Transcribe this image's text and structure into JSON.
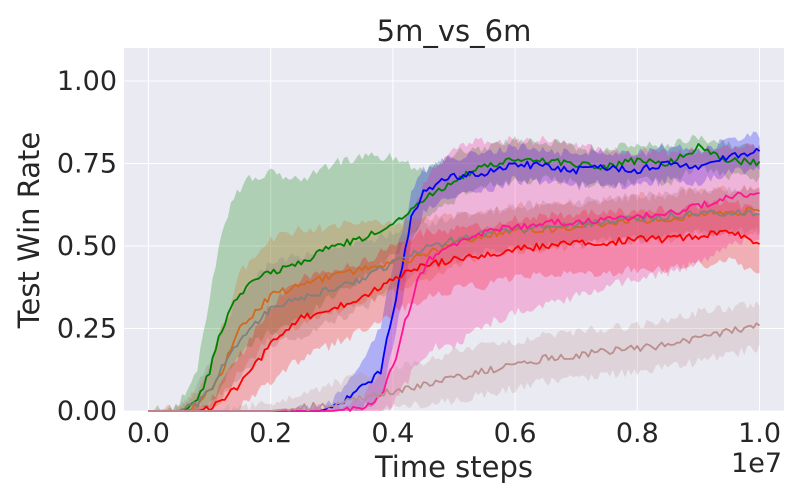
{
  "chart_data": {
    "type": "line",
    "title": "5m_vs_6m",
    "xlabel": "Time steps",
    "ylabel": "Test Win Rate",
    "x_offset_label": "1e7",
    "xlim": [
      -0.04,
      1.04
    ],
    "ylim": [
      0.0,
      1.1
    ],
    "x_ticks": [
      0.0,
      0.2,
      0.4,
      0.6,
      0.8,
      1.0
    ],
    "x_tick_labels": [
      "0.0",
      "0.2",
      "0.4",
      "0.6",
      "0.8",
      "1.0"
    ],
    "y_ticks": [
      0.0,
      0.25,
      0.5,
      0.75,
      1.0
    ],
    "y_tick_labels": [
      "0.00",
      "0.25",
      "0.50",
      "0.75",
      "1.00"
    ],
    "grid": true,
    "background": "#eaeaf2",
    "series": [
      {
        "color": "#008000",
        "x": [
          0.0,
          0.05,
          0.08,
          0.1,
          0.12,
          0.14,
          0.16,
          0.2,
          0.25,
          0.3,
          0.35,
          0.4,
          0.45,
          0.5,
          0.55,
          0.6,
          0.65,
          0.7,
          0.75,
          0.8,
          0.85,
          0.9,
          0.95,
          1.0
        ],
        "y": [
          0.0,
          0.0,
          0.03,
          0.12,
          0.25,
          0.33,
          0.38,
          0.42,
          0.45,
          0.5,
          0.52,
          0.57,
          0.64,
          0.7,
          0.74,
          0.76,
          0.76,
          0.75,
          0.74,
          0.76,
          0.75,
          0.8,
          0.76,
          0.75
        ],
        "lower": [
          0.0,
          0.0,
          0.0,
          0.02,
          0.08,
          0.14,
          0.19,
          0.24,
          0.28,
          0.35,
          0.4,
          0.47,
          0.58,
          0.64,
          0.68,
          0.7,
          0.7,
          0.69,
          0.68,
          0.7,
          0.69,
          0.74,
          0.71,
          0.7
        ],
        "upper": [
          0.0,
          0.02,
          0.12,
          0.35,
          0.55,
          0.65,
          0.7,
          0.72,
          0.7,
          0.75,
          0.77,
          0.77,
          0.73,
          0.78,
          0.8,
          0.82,
          0.82,
          0.8,
          0.79,
          0.81,
          0.8,
          0.83,
          0.81,
          0.8
        ]
      },
      {
        "color": "#0000ff",
        "x": [
          0.0,
          0.1,
          0.2,
          0.28,
          0.3,
          0.33,
          0.36,
          0.38,
          0.4,
          0.42,
          0.43,
          0.45,
          0.5,
          0.55,
          0.6,
          0.65,
          0.7,
          0.75,
          0.8,
          0.85,
          0.9,
          0.95,
          1.0
        ],
        "y": [
          0.0,
          0.0,
          0.0,
          0.0,
          0.01,
          0.04,
          0.09,
          0.12,
          0.3,
          0.48,
          0.58,
          0.67,
          0.71,
          0.72,
          0.75,
          0.74,
          0.73,
          0.74,
          0.73,
          0.75,
          0.74,
          0.77,
          0.79
        ],
        "lower": [
          0.0,
          0.0,
          0.0,
          0.0,
          0.0,
          0.0,
          0.02,
          0.04,
          0.19,
          0.38,
          0.5,
          0.6,
          0.65,
          0.67,
          0.7,
          0.69,
          0.68,
          0.69,
          0.68,
          0.7,
          0.69,
          0.72,
          0.74
        ],
        "upper": [
          0.0,
          0.0,
          0.0,
          0.01,
          0.03,
          0.09,
          0.19,
          0.26,
          0.44,
          0.58,
          0.66,
          0.73,
          0.77,
          0.78,
          0.8,
          0.79,
          0.78,
          0.79,
          0.78,
          0.8,
          0.79,
          0.82,
          0.84
        ]
      },
      {
        "color": "#d2691e",
        "x": [
          0.0,
          0.05,
          0.08,
          0.1,
          0.12,
          0.15,
          0.2,
          0.25,
          0.3,
          0.35,
          0.4,
          0.45,
          0.5,
          0.55,
          0.6,
          0.65,
          0.7,
          0.75,
          0.8,
          0.85,
          0.9,
          0.95,
          1.0
        ],
        "y": [
          0.0,
          0.0,
          0.02,
          0.06,
          0.12,
          0.25,
          0.35,
          0.38,
          0.41,
          0.43,
          0.45,
          0.47,
          0.51,
          0.53,
          0.55,
          0.55,
          0.56,
          0.57,
          0.58,
          0.58,
          0.6,
          0.6,
          0.61
        ],
        "lower": [
          0.0,
          0.0,
          0.0,
          0.01,
          0.04,
          0.12,
          0.22,
          0.26,
          0.3,
          0.33,
          0.36,
          0.39,
          0.44,
          0.47,
          0.49,
          0.49,
          0.5,
          0.51,
          0.52,
          0.52,
          0.54,
          0.54,
          0.55
        ],
        "upper": [
          0.0,
          0.01,
          0.06,
          0.14,
          0.25,
          0.42,
          0.52,
          0.55,
          0.56,
          0.57,
          0.57,
          0.58,
          0.59,
          0.6,
          0.62,
          0.62,
          0.63,
          0.64,
          0.65,
          0.65,
          0.67,
          0.67,
          0.68
        ]
      },
      {
        "color": "#808080",
        "x": [
          0.0,
          0.05,
          0.08,
          0.1,
          0.12,
          0.15,
          0.2,
          0.25,
          0.3,
          0.35,
          0.4,
          0.45,
          0.5,
          0.55,
          0.6,
          0.65,
          0.7,
          0.75,
          0.8,
          0.85,
          0.9,
          0.95,
          1.0
        ],
        "y": [
          0.0,
          0.0,
          0.02,
          0.06,
          0.13,
          0.22,
          0.31,
          0.34,
          0.37,
          0.4,
          0.45,
          0.49,
          0.52,
          0.54,
          0.55,
          0.56,
          0.56,
          0.58,
          0.58,
          0.59,
          0.6,
          0.6,
          0.6
        ],
        "lower": [
          0.0,
          0.0,
          0.0,
          0.01,
          0.05,
          0.1,
          0.19,
          0.23,
          0.27,
          0.31,
          0.37,
          0.42,
          0.46,
          0.48,
          0.49,
          0.5,
          0.5,
          0.52,
          0.52,
          0.53,
          0.54,
          0.54,
          0.54
        ],
        "upper": [
          0.0,
          0.01,
          0.07,
          0.15,
          0.24,
          0.36,
          0.45,
          0.47,
          0.49,
          0.51,
          0.54,
          0.56,
          0.59,
          0.61,
          0.62,
          0.63,
          0.63,
          0.65,
          0.65,
          0.66,
          0.67,
          0.67,
          0.67
        ]
      },
      {
        "color": "#ff0000",
        "x": [
          0.0,
          0.05,
          0.08,
          0.1,
          0.12,
          0.15,
          0.2,
          0.25,
          0.3,
          0.35,
          0.4,
          0.45,
          0.5,
          0.55,
          0.6,
          0.65,
          0.7,
          0.75,
          0.8,
          0.85,
          0.9,
          0.95,
          1.0
        ],
        "y": [
          0.0,
          0.0,
          0.0,
          0.01,
          0.03,
          0.08,
          0.2,
          0.28,
          0.31,
          0.34,
          0.4,
          0.44,
          0.46,
          0.47,
          0.49,
          0.5,
          0.51,
          0.51,
          0.52,
          0.52,
          0.53,
          0.55,
          0.51
        ],
        "lower": [
          0.0,
          0.0,
          0.0,
          0.0,
          0.0,
          0.01,
          0.09,
          0.16,
          0.2,
          0.24,
          0.3,
          0.34,
          0.37,
          0.38,
          0.4,
          0.41,
          0.42,
          0.42,
          0.43,
          0.43,
          0.44,
          0.46,
          0.42
        ],
        "upper": [
          0.0,
          0.0,
          0.01,
          0.03,
          0.08,
          0.17,
          0.32,
          0.4,
          0.43,
          0.45,
          0.5,
          0.54,
          0.55,
          0.56,
          0.58,
          0.59,
          0.6,
          0.6,
          0.61,
          0.61,
          0.62,
          0.64,
          0.6
        ]
      },
      {
        "color": "#ff1493",
        "x": [
          0.0,
          0.1,
          0.2,
          0.3,
          0.35,
          0.38,
          0.4,
          0.42,
          0.44,
          0.46,
          0.5,
          0.55,
          0.6,
          0.65,
          0.7,
          0.75,
          0.8,
          0.85,
          0.9,
          0.95,
          1.0
        ],
        "y": [
          0.0,
          0.0,
          0.0,
          0.0,
          0.01,
          0.05,
          0.13,
          0.27,
          0.39,
          0.46,
          0.5,
          0.54,
          0.56,
          0.57,
          0.57,
          0.58,
          0.59,
          0.6,
          0.62,
          0.65,
          0.66
        ],
        "lower": [
          0.0,
          0.0,
          0.0,
          0.0,
          0.0,
          0.0,
          0.02,
          0.08,
          0.14,
          0.19,
          0.2,
          0.26,
          0.3,
          0.32,
          0.35,
          0.38,
          0.4,
          0.42,
          0.45,
          0.5,
          0.53
        ],
        "upper": [
          0.0,
          0.0,
          0.0,
          0.01,
          0.04,
          0.12,
          0.3,
          0.5,
          0.64,
          0.72,
          0.8,
          0.82,
          0.82,
          0.82,
          0.8,
          0.79,
          0.79,
          0.78,
          0.79,
          0.8,
          0.8
        ]
      },
      {
        "color": "#bc8f8f",
        "x": [
          0.0,
          0.1,
          0.2,
          0.25,
          0.3,
          0.35,
          0.4,
          0.45,
          0.5,
          0.55,
          0.6,
          0.65,
          0.7,
          0.75,
          0.8,
          0.85,
          0.9,
          0.95,
          1.0
        ],
        "y": [
          0.0,
          0.0,
          0.0,
          0.01,
          0.02,
          0.04,
          0.06,
          0.08,
          0.1,
          0.12,
          0.14,
          0.16,
          0.17,
          0.18,
          0.19,
          0.2,
          0.22,
          0.24,
          0.26
        ],
        "lower": [
          0.0,
          0.0,
          0.0,
          0.0,
          0.0,
          0.0,
          0.01,
          0.02,
          0.03,
          0.05,
          0.07,
          0.09,
          0.1,
          0.11,
          0.12,
          0.13,
          0.15,
          0.17,
          0.19
        ],
        "upper": [
          0.0,
          0.0,
          0.02,
          0.05,
          0.08,
          0.11,
          0.13,
          0.15,
          0.18,
          0.2,
          0.21,
          0.23,
          0.24,
          0.25,
          0.26,
          0.28,
          0.3,
          0.31,
          0.33
        ]
      }
    ]
  }
}
